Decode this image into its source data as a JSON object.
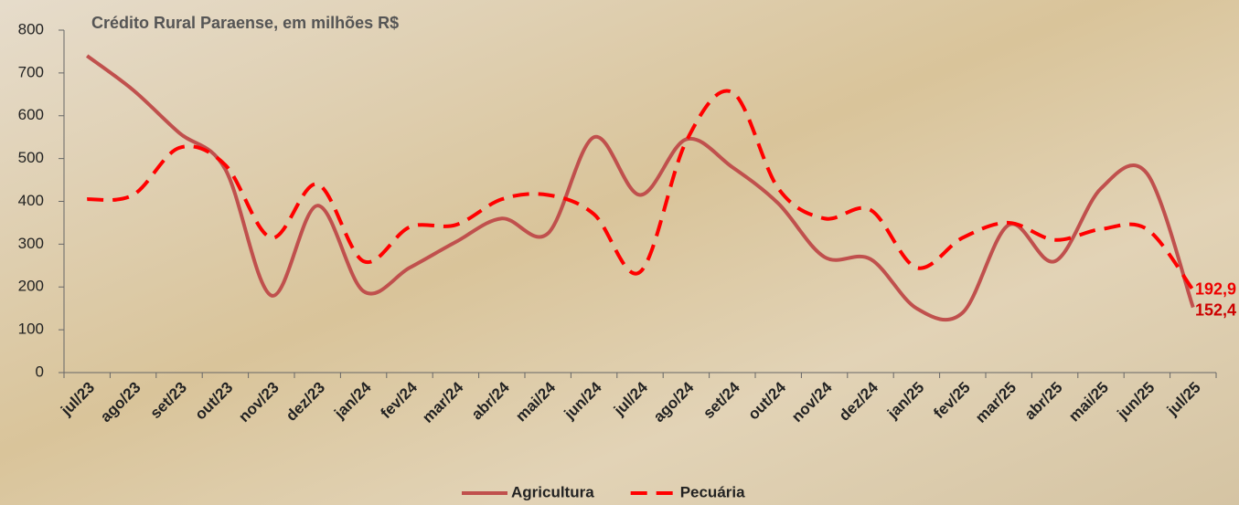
{
  "chart_data": {
    "type": "line",
    "title": "Crédito Rural Paraense, em milhões R$",
    "categories": [
      "jul/23",
      "ago/23",
      "set/23",
      "out/23",
      "nov/23",
      "dez/23",
      "jan/24",
      "fev/24",
      "mar/24",
      "abr/24",
      "mai/24",
      "jun/24",
      "jul/24",
      "ago/24",
      "set/24",
      "out/24",
      "nov/24",
      "dez/24",
      "jan/25",
      "fev/25",
      "mar/25",
      "abr/25",
      "mai/25",
      "jun/25",
      "jul/25"
    ],
    "series": [
      {
        "name": "Agricultura",
        "color": "#c0504d",
        "dashed": false,
        "values": [
          740,
          660,
          560,
          475,
          180,
          390,
          190,
          245,
          305,
          360,
          325,
          550,
          415,
          545,
          480,
          395,
          270,
          265,
          150,
          140,
          345,
          260,
          430,
          465,
          152.4
        ],
        "value_labels": [
          null,
          null,
          null,
          null,
          null,
          null,
          null,
          null,
          null,
          null,
          null,
          null,
          null,
          null,
          null,
          null,
          null,
          null,
          null,
          null,
          null,
          null,
          null,
          null,
          "152,4"
        ]
      },
      {
        "name": "Pecuária",
        "color": "#ff0000",
        "dashed": true,
        "values": [
          405,
          415,
          525,
          485,
          315,
          440,
          260,
          340,
          345,
          405,
          415,
          370,
          235,
          540,
          655,
          430,
          360,
          380,
          245,
          315,
          350,
          310,
          335,
          335,
          192.9
        ],
        "value_labels": [
          null,
          null,
          null,
          null,
          null,
          null,
          null,
          null,
          null,
          null,
          null,
          null,
          null,
          null,
          null,
          null,
          null,
          null,
          null,
          null,
          null,
          null,
          null,
          null,
          "192,9"
        ]
      }
    ],
    "ylim": [
      0,
      800
    ],
    "yticks": [
      0,
      100,
      200,
      300,
      400,
      500,
      600,
      700,
      800
    ],
    "legend": "bottom"
  }
}
